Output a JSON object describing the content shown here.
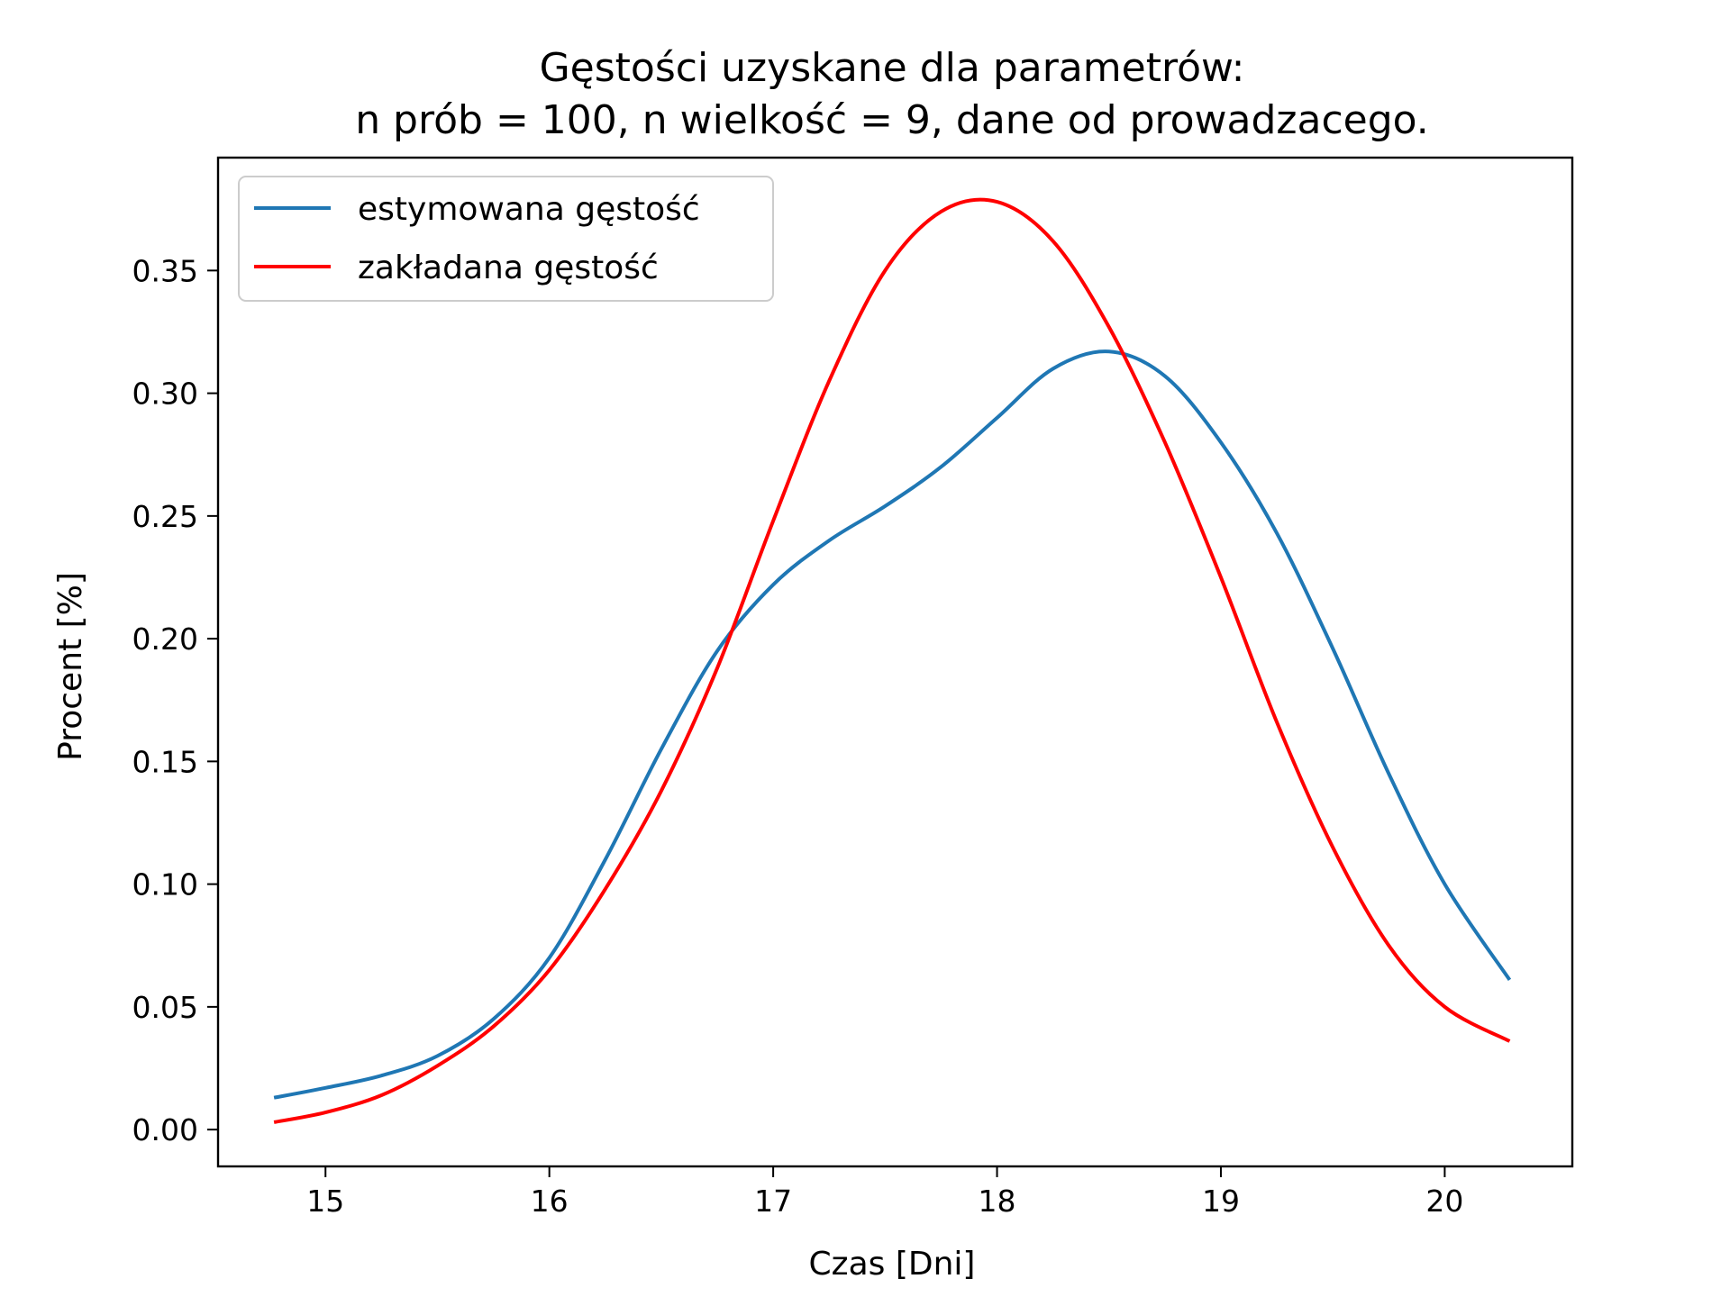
{
  "chart_data": {
    "type": "line",
    "title_line1": "Gęstości uzyskane dla parametrów:",
    "title_line2": "n prób = 100, n wielkość = 9, dane od prowadzacego.",
    "xlabel": "Czas [Dni]",
    "ylabel": "Procent [%]",
    "xlim": [
      14.52,
      20.57
    ],
    "ylim": [
      -0.015,
      0.396
    ],
    "xticks": [
      15,
      16,
      17,
      18,
      19,
      20
    ],
    "yticks": [
      0.0,
      0.05,
      0.1,
      0.15,
      0.2,
      0.25,
      0.3,
      0.35
    ],
    "ytick_labels": [
      "0.00",
      "0.05",
      "0.10",
      "0.15",
      "0.20",
      "0.25",
      "0.30",
      "0.35"
    ],
    "legend_position": "upper-left",
    "series": [
      {
        "name": "estymowana gęstość",
        "color": "#1f77b4",
        "x": [
          14.77,
          15.0,
          15.25,
          15.5,
          15.75,
          16.0,
          16.25,
          16.5,
          16.75,
          17.0,
          17.25,
          17.5,
          17.75,
          18.0,
          18.25,
          18.5,
          18.75,
          19.0,
          19.25,
          19.5,
          19.75,
          20.0,
          20.29
        ],
        "y": [
          0.013,
          0.017,
          0.022,
          0.03,
          0.045,
          0.07,
          0.11,
          0.155,
          0.195,
          0.222,
          0.24,
          0.254,
          0.27,
          0.29,
          0.31,
          0.317,
          0.307,
          0.28,
          0.243,
          0.196,
          0.145,
          0.1,
          0.061
        ]
      },
      {
        "name": "zakładana gęstość",
        "color": "#ff0000",
        "x": [
          14.77,
          15.0,
          15.25,
          15.5,
          15.75,
          16.0,
          16.25,
          16.5,
          16.75,
          17.0,
          17.25,
          17.5,
          17.75,
          18.0,
          18.25,
          18.5,
          18.75,
          19.0,
          19.25,
          19.5,
          19.75,
          20.0,
          20.29
        ],
        "y": [
          0.003,
          0.007,
          0.014,
          0.026,
          0.042,
          0.065,
          0.098,
          0.138,
          0.188,
          0.248,
          0.305,
          0.35,
          0.374,
          0.378,
          0.362,
          0.327,
          0.28,
          0.225,
          0.166,
          0.115,
          0.075,
          0.05,
          0.036
        ]
      }
    ]
  }
}
